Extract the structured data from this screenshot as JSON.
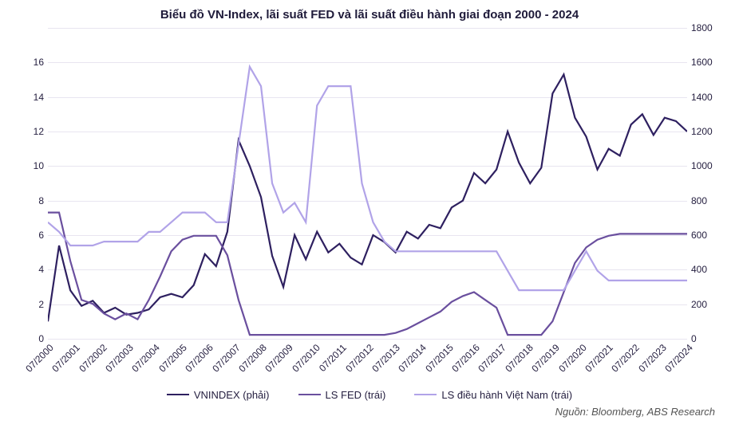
{
  "chart": {
    "type": "line",
    "title": "Biểu đồ VN-Index, lãi suất FED và lãi suất điều hành giai đoạn 2000 - 2024",
    "title_fontsize": 15,
    "title_color": "#1f1b3a",
    "background_color": "#ffffff",
    "grid_color": "#e8e5f0",
    "axis_label_fontsize": 12,
    "axis_label_color": "#262041",
    "source_text": "Nguồn: Bloomberg, ABS Research",
    "source_fontsize": 13,
    "y_left": {
      "min": 0,
      "max": 16,
      "step": 2,
      "ticks": [
        0,
        2,
        4,
        6,
        8,
        10,
        12,
        14,
        16
      ]
    },
    "y_right": {
      "min": 0,
      "max": 1800,
      "step": 200,
      "ticks": [
        0,
        200,
        400,
        600,
        800,
        1000,
        1200,
        1400,
        1600,
        1800
      ]
    },
    "x_categories": [
      "07/2000",
      "07/2001",
      "07/2002",
      "07/2003",
      "07/2004",
      "07/2005",
      "07/2006",
      "07/2007",
      "07/2008",
      "07/2009",
      "07/2010",
      "07/2011",
      "07/2012",
      "07/2013",
      "07/2014",
      "07/2015",
      "07/2016",
      "07/2017",
      "07/2018",
      "07/2019",
      "07/2020",
      "07/2021",
      "07/2022",
      "07/2023",
      "07/2024"
    ],
    "series": [
      {
        "key": "vnindex",
        "label": "VNINDEX (phải)",
        "axis": "right",
        "color": "#2e2060",
        "line_width": 2.2,
        "data": [
          100,
          540,
          280,
          190,
          220,
          150,
          180,
          140,
          150,
          170,
          240,
          260,
          240,
          310,
          490,
          420,
          620,
          1150,
          1000,
          820,
          480,
          300,
          600,
          460,
          620,
          500,
          550,
          470,
          430,
          600,
          560,
          500,
          620,
          580,
          660,
          640,
          760,
          800,
          960,
          900,
          980,
          1200,
          1020,
          900,
          990,
          1420,
          1530,
          1280,
          1170,
          980,
          1100,
          1060,
          1240,
          1300,
          1180,
          1280,
          1260,
          1200
        ]
      },
      {
        "key": "ls_fed",
        "label": "LS FED (trái)",
        "axis": "left",
        "color": "#6a4f9e",
        "line_width": 2.2,
        "data": [
          6.5,
          6.5,
          4.0,
          2.0,
          1.8,
          1.3,
          1.0,
          1.3,
          1.0,
          2.0,
          3.2,
          4.5,
          5.1,
          5.3,
          5.3,
          5.3,
          4.3,
          2.0,
          0.2,
          0.2,
          0.2,
          0.2,
          0.2,
          0.2,
          0.2,
          0.2,
          0.2,
          0.2,
          0.2,
          0.2,
          0.2,
          0.3,
          0.5,
          0.8,
          1.1,
          1.4,
          1.9,
          2.2,
          2.4,
          2.0,
          1.6,
          0.2,
          0.2,
          0.2,
          0.2,
          0.9,
          2.4,
          3.9,
          4.7,
          5.1,
          5.3,
          5.4,
          5.4,
          5.4,
          5.4,
          5.4,
          5.4,
          5.4
        ]
      },
      {
        "key": "ls_vn",
        "label": "LS điều hành Việt Nam (trái)",
        "axis": "left",
        "color": "#b1a3e8",
        "line_width": 2.2,
        "data": [
          6.0,
          5.5,
          4.8,
          4.8,
          4.8,
          5.0,
          5.0,
          5.0,
          5.0,
          5.5,
          5.5,
          6.0,
          6.5,
          6.5,
          6.5,
          6.0,
          6.0,
          10.0,
          14.0,
          13.0,
          8.0,
          6.5,
          7.0,
          6.0,
          12.0,
          13.0,
          13.0,
          13.0,
          8.0,
          6.0,
          5.0,
          4.5,
          4.5,
          4.5,
          4.5,
          4.5,
          4.5,
          4.5,
          4.5,
          4.5,
          4.5,
          3.5,
          2.5,
          2.5,
          2.5,
          2.5,
          2.5,
          3.5,
          4.5,
          3.5,
          3.0,
          3.0,
          3.0,
          3.0,
          3.0,
          3.0,
          3.0,
          3.0
        ]
      }
    ],
    "legend": {
      "position": "bottom",
      "fontsize": 13,
      "swatch_width": 28
    }
  }
}
